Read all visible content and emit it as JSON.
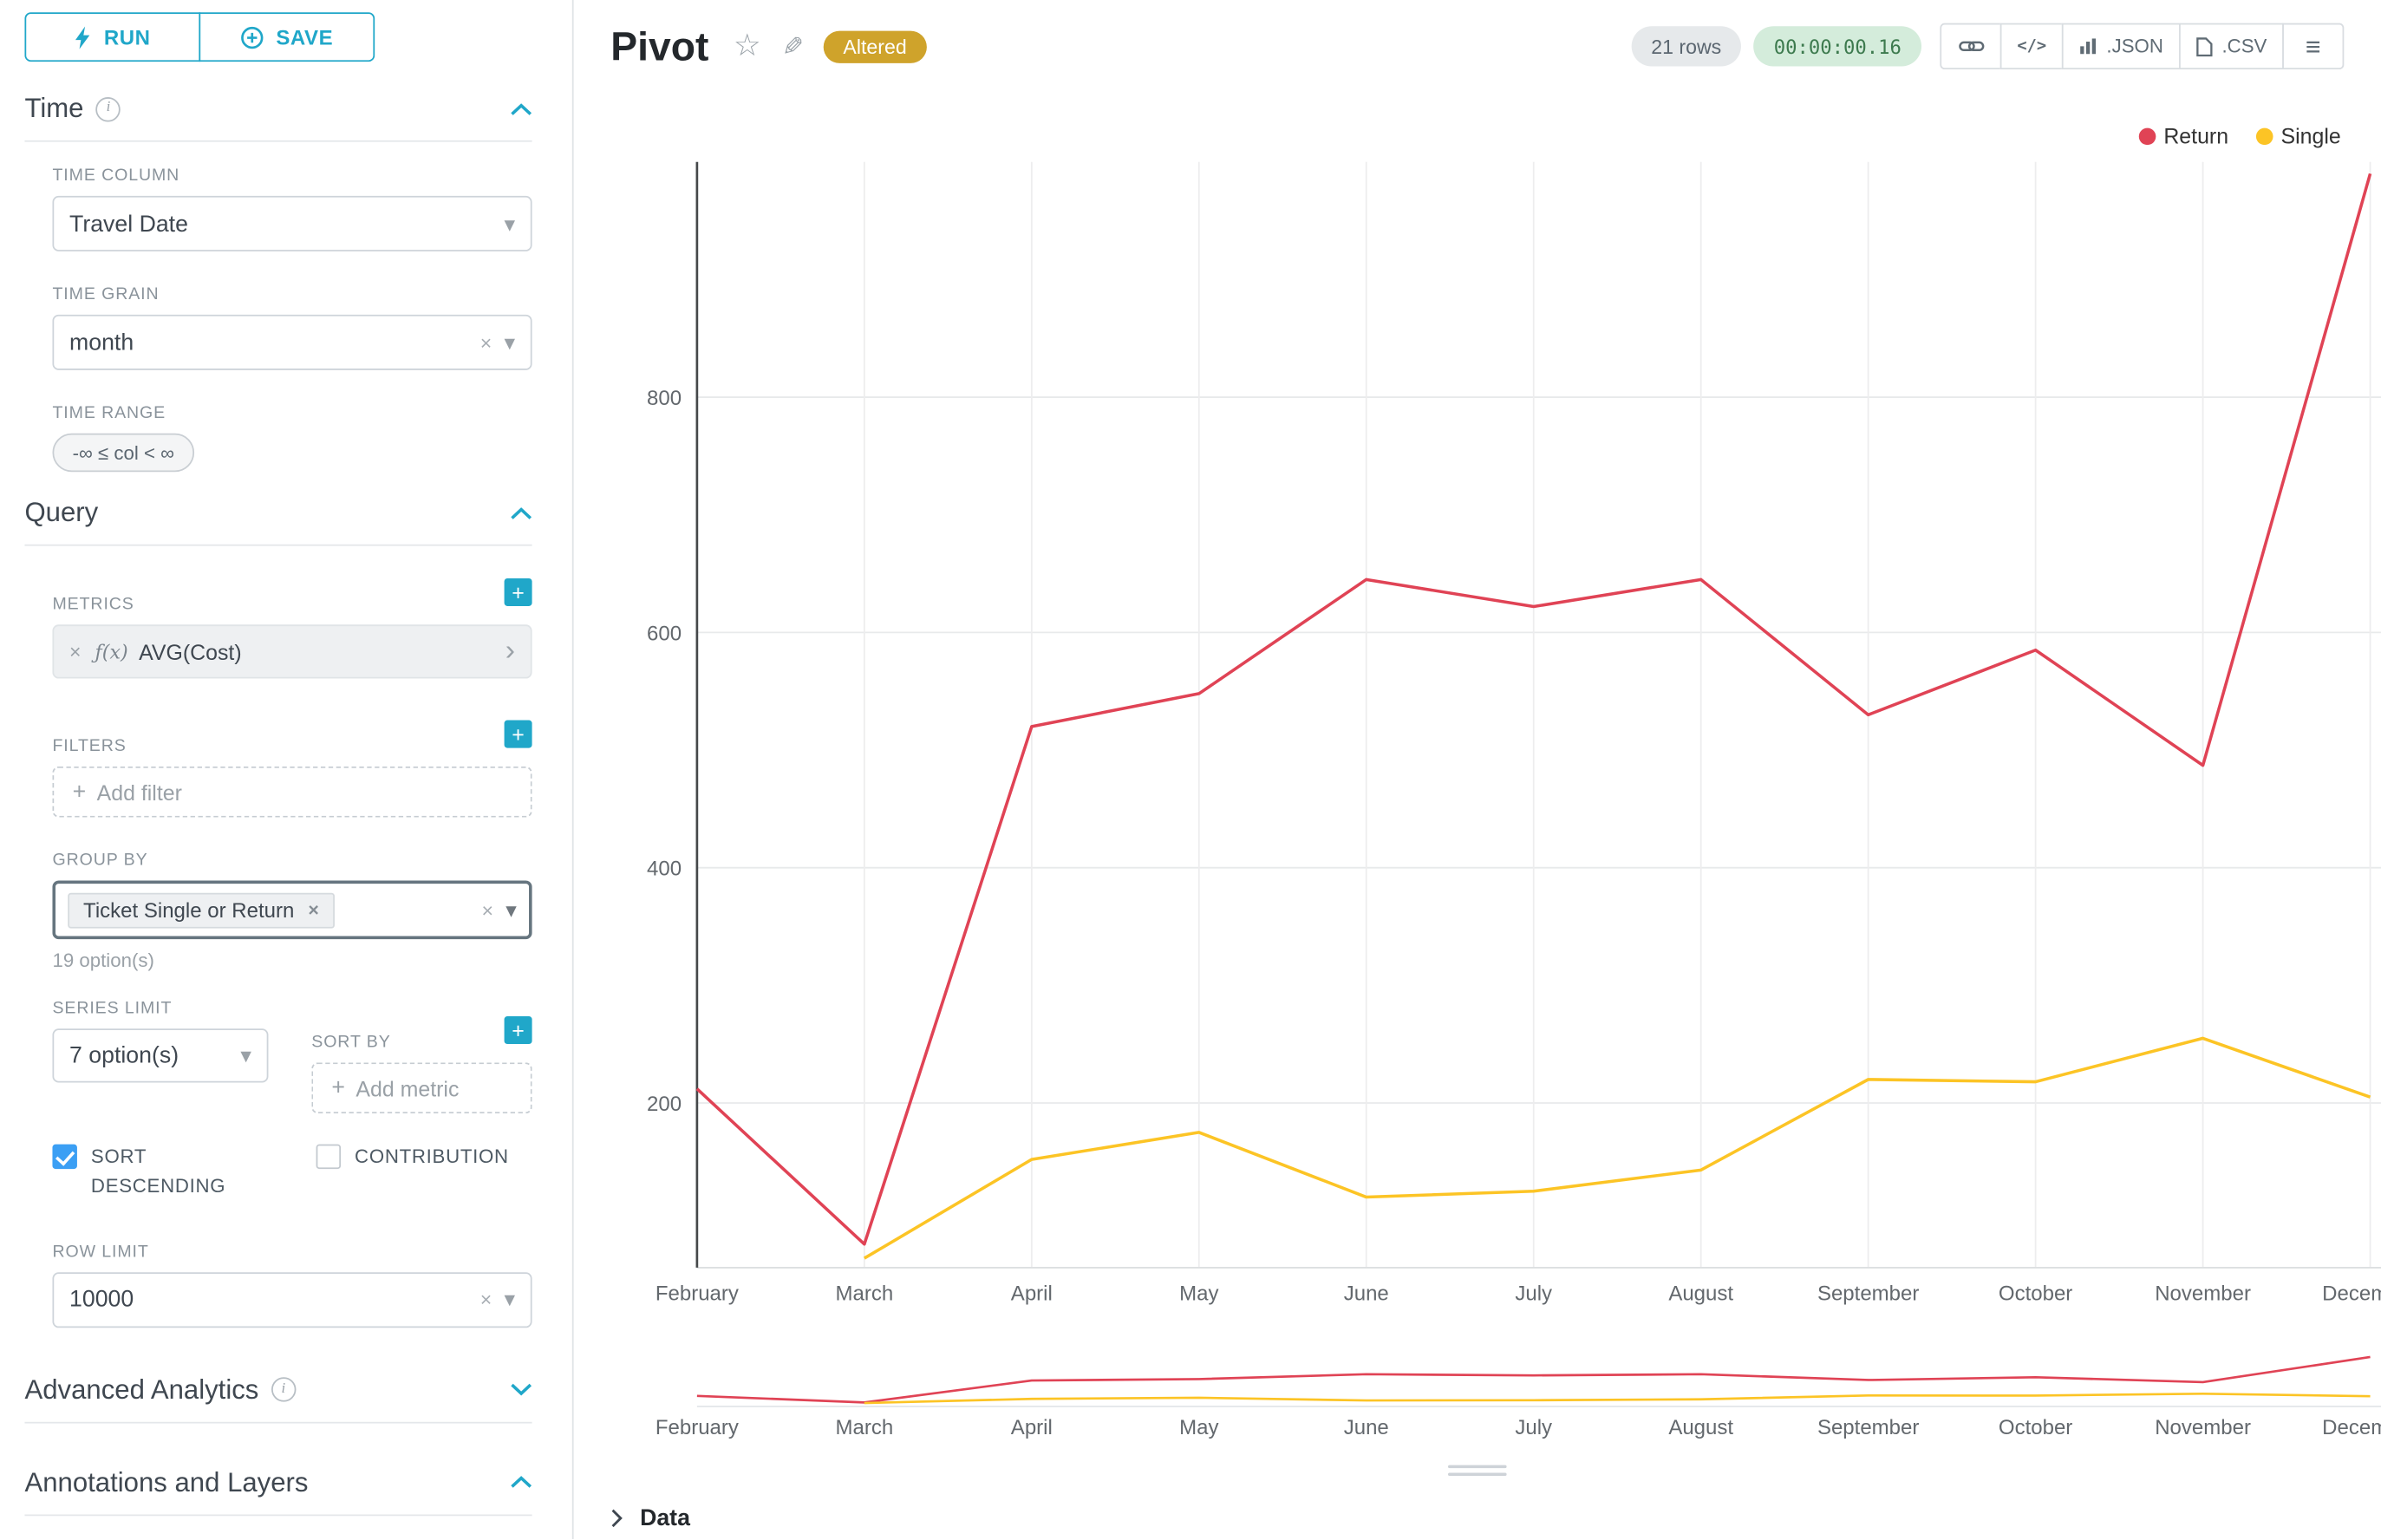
{
  "actions": {
    "run_label": "RUN",
    "save_label": "SAVE"
  },
  "icons": {
    "info": "i",
    "caret_down": "▾",
    "clear": "×",
    "plus": "+",
    "chevron_right": "›",
    "star": "☆",
    "edit": "✎",
    "code": "</>",
    "menu": "≡"
  },
  "colors": {
    "accent": "#20a7c9",
    "badge_bg": "#cfa32b",
    "badge_text": "#ffffff",
    "timer_bg": "#d4ecdb",
    "timer_text": "#3d7a4e",
    "pill_bg": "#e6e9eb",
    "pill_text": "#5b6670",
    "checkbox": "#3b9ff4",
    "focus_border": "#66757f"
  },
  "panel": {
    "time": {
      "title": "Time",
      "time_column": {
        "label": "TIME COLUMN",
        "value": "Travel Date"
      },
      "time_grain": {
        "label": "TIME GRAIN",
        "value": "month"
      },
      "time_range": {
        "label": "TIME RANGE",
        "value": "-∞ ≤ col < ∞"
      }
    },
    "query": {
      "title": "Query",
      "metrics": {
        "label": "METRICS",
        "fx": "ƒ(x)",
        "value": "AVG(Cost)"
      },
      "filters": {
        "label": "FILTERS",
        "placeholder": "Add filter"
      },
      "group_by": {
        "label": "GROUP BY",
        "chip": "Ticket Single or Return",
        "hint": "19 option(s)"
      },
      "series_limit": {
        "label": "SERIES LIMIT",
        "value": "7 option(s)"
      },
      "sort_by": {
        "label": "SORT BY",
        "placeholder": "Add metric"
      },
      "sort_descending": {
        "label": "SORT DESCENDING",
        "checked": true
      },
      "contribution": {
        "label": "CONTRIBUTION",
        "checked": false
      },
      "row_limit": {
        "label": "ROW LIMIT",
        "value": "10000"
      }
    },
    "advanced": {
      "title": "Advanced Analytics"
    },
    "annotations": {
      "title": "Annotations and Layers"
    }
  },
  "header": {
    "title": "Pivot",
    "badge": "Altered",
    "rows": "21 rows",
    "timer": "00:00:00.16",
    "json_label": ".JSON",
    "csv_label": ".CSV"
  },
  "footer": {
    "data_label": "Data"
  },
  "chart_data": {
    "type": "line",
    "x": [
      "February",
      "March",
      "April",
      "May",
      "June",
      "July",
      "August",
      "September",
      "October",
      "November",
      "December"
    ],
    "series": [
      {
        "name": "Return",
        "color": "#e04355",
        "values": [
          212,
          80,
          520,
          548,
          645,
          622,
          645,
          530,
          585,
          487,
          990
        ]
      },
      {
        "name": "Single",
        "color": "#fcc425",
        "values": [
          null,
          68,
          152,
          175,
          120,
          125,
          143,
          220,
          218,
          255,
          205
        ]
      }
    ],
    "title": "",
    "xlabel": "",
    "ylabel": "",
    "yticks": [
      200,
      400,
      600,
      800
    ],
    "ylim": [
      60,
      1000
    ],
    "grid": true,
    "legend_position": "top-right",
    "mini_chart": true
  }
}
